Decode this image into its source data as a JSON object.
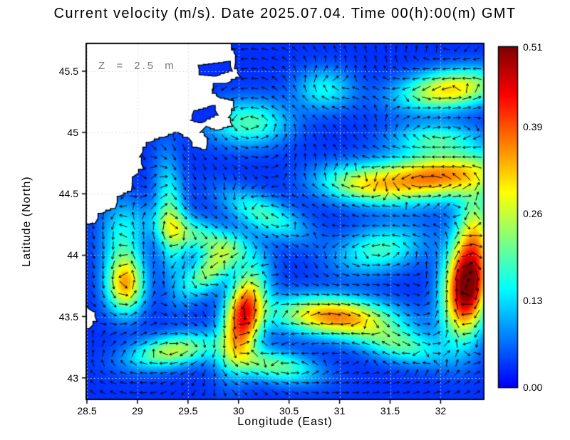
{
  "chart_data": {
    "type": "heatmap",
    "subtype": "ocean-current-vector-map",
    "title": "Current velocity (m/s). Date 2025.07.04. Time 00(h):00(m) GMT",
    "xlabel": "Longitude (East)",
    "ylabel": "Latitude (North)",
    "depth_annotation": "Z = 2.5 m",
    "xlim": [
      28.5,
      32.42
    ],
    "ylim": [
      42.83,
      45.72
    ],
    "xtick_values": [
      28.5,
      29,
      29.5,
      30,
      30.5,
      31,
      31.5,
      32
    ],
    "xtick_labels": [
      "28.5",
      "29",
      "29.5",
      "30",
      "30.5",
      "31",
      "31.5",
      "32"
    ],
    "ytick_values": [
      43,
      43.5,
      44,
      44.5,
      45,
      45.5
    ],
    "ytick_labels": [
      "43",
      "43.5",
      "44",
      "44.5",
      "45",
      "45.5"
    ],
    "grid": true,
    "colorbar": {
      "vmin": 0,
      "vmax": 0.51,
      "tick_values": [
        0.51,
        0.39,
        0.26,
        0.13,
        0
      ],
      "tick_labels": [
        "0.51",
        "0.39",
        "0.26",
        "0.13",
        "0.00"
      ],
      "colormap": "jet",
      "position": "right",
      "units": "m/s"
    },
    "field_representation": "gaussian_feature_approximation",
    "background_speed": 0.03,
    "speed_features": [
      {
        "lon": 31.95,
        "lat": 44.64,
        "sx": 0.5,
        "sy": 0.13,
        "rot": 4,
        "amp": 0.34,
        "sign": 1
      },
      {
        "lon": 31.2,
        "lat": 44.58,
        "sx": 0.3,
        "sy": 0.1,
        "rot": -5,
        "amp": 0.15,
        "sign": -1
      },
      {
        "lon": 32.26,
        "lat": 43.76,
        "sx": 0.15,
        "sy": 0.28,
        "rot": -8,
        "amp": 0.52,
        "sign": -1
      },
      {
        "lon": 30.05,
        "lat": 43.5,
        "sx": 0.13,
        "sy": 0.26,
        "rot": -15,
        "amp": 0.4,
        "sign": 1
      },
      {
        "lon": 30.95,
        "lat": 43.5,
        "sx": 0.4,
        "sy": 0.11,
        "rot": -3,
        "amp": 0.33,
        "sign": -1
      },
      {
        "lon": 28.88,
        "lat": 43.76,
        "sx": 0.13,
        "sy": 0.16,
        "rot": 0,
        "amp": 0.3,
        "sign": 1
      },
      {
        "lon": 29.35,
        "lat": 43.22,
        "sx": 0.3,
        "sy": 0.09,
        "rot": 8,
        "amp": 0.22,
        "sign": -1
      },
      {
        "lon": 32.1,
        "lat": 45.35,
        "sx": 0.35,
        "sy": 0.11,
        "rot": 6,
        "amp": 0.28,
        "sign": 1
      },
      {
        "lon": 29.62,
        "lat": 44.15,
        "sx": 0.33,
        "sy": 0.1,
        "rot": -15,
        "amp": 0.16,
        "sign": -1
      },
      {
        "lon": 30.25,
        "lat": 44.33,
        "sx": 0.3,
        "sy": 0.1,
        "rot": -20,
        "amp": 0.15,
        "sign": 1
      },
      {
        "lon": 31.4,
        "lat": 44.05,
        "sx": 0.3,
        "sy": 0.13,
        "rot": 10,
        "amp": 0.15,
        "sign": 1
      },
      {
        "lon": 29.33,
        "lat": 44.3,
        "sx": 0.1,
        "sy": 0.33,
        "rot": 5,
        "amp": 0.16,
        "sign": -1
      },
      {
        "lon": 30.1,
        "lat": 45.08,
        "sx": 0.28,
        "sy": 0.13,
        "rot": 0,
        "amp": 0.16,
        "sign": 1
      },
      {
        "lon": 31.95,
        "lat": 44.95,
        "sx": 0.3,
        "sy": 0.09,
        "rot": 0,
        "amp": 0.14,
        "sign": -1
      },
      {
        "lon": 29.72,
        "lat": 43.88,
        "sx": 0.22,
        "sy": 0.1,
        "rot": 35,
        "amp": 0.2,
        "sign": 1
      },
      {
        "lon": 30.85,
        "lat": 45.35,
        "sx": 0.2,
        "sy": 0.12,
        "rot": 0,
        "amp": 0.12,
        "sign": -1
      },
      {
        "lon": 30.35,
        "lat": 43.1,
        "sx": 0.3,
        "sy": 0.09,
        "rot": -8,
        "amp": 0.18,
        "sign": 1
      },
      {
        "lon": 31.6,
        "lat": 43.27,
        "sx": 0.3,
        "sy": 0.1,
        "rot": -10,
        "amp": 0.16,
        "sign": -1
      },
      {
        "lon": 32.35,
        "lat": 44.25,
        "sx": 0.12,
        "sy": 0.2,
        "rot": 0,
        "amp": 0.15,
        "sign": 1
      },
      {
        "lon": 28.85,
        "lat": 44.15,
        "sx": 0.15,
        "sy": 0.2,
        "rot": 0,
        "amp": 0.12,
        "sign": 1
      }
    ],
    "gyres": [
      {
        "lon": 30.9,
        "lat": 44.15,
        "sigma": 1.2,
        "amp": 1.0
      },
      {
        "lon": 31.8,
        "lat": 45.15,
        "sigma": 0.7,
        "amp": -0.55
      },
      {
        "lon": 29.5,
        "lat": 43.6,
        "sigma": 0.65,
        "amp": -0.5
      },
      {
        "lon": 30.0,
        "lat": 45.2,
        "sigma": 0.5,
        "amp": 0.45
      },
      {
        "lon": 32.2,
        "lat": 43.8,
        "sigma": 0.5,
        "amp": 0.5
      }
    ],
    "arrow_grid": {
      "dlon": 0.1,
      "dlat": 0.08,
      "lon_offset": 0.06,
      "lat_offset": 0.05
    },
    "coastline": {
      "land_polygons": [
        [
          [
            28.45,
            45.76
          ],
          [
            29.93,
            45.76
          ],
          [
            29.93,
            45.68
          ],
          [
            29.98,
            45.62
          ],
          [
            29.96,
            45.52
          ],
          [
            30.02,
            45.45
          ],
          [
            29.88,
            45.4
          ],
          [
            29.76,
            45.4
          ],
          [
            29.74,
            45.32
          ],
          [
            29.82,
            45.28
          ],
          [
            29.94,
            45.26
          ],
          [
            29.96,
            45.18
          ],
          [
            29.9,
            45.12
          ],
          [
            29.94,
            45.05
          ],
          [
            29.8,
            45.02
          ],
          [
            29.68,
            45.05
          ],
          [
            29.62,
            45.0
          ],
          [
            29.7,
            44.95
          ],
          [
            29.68,
            44.86
          ],
          [
            29.58,
            44.88
          ],
          [
            29.5,
            44.96
          ],
          [
            29.4,
            45.0
          ],
          [
            29.26,
            44.96
          ],
          [
            29.12,
            44.92
          ],
          [
            29.02,
            44.8
          ],
          [
            29.06,
            44.7
          ],
          [
            28.96,
            44.64
          ],
          [
            28.94,
            44.52
          ],
          [
            28.82,
            44.48
          ],
          [
            28.78,
            44.38
          ],
          [
            28.64,
            44.34
          ],
          [
            28.58,
            44.26
          ],
          [
            28.45,
            44.24
          ]
        ],
        [
          [
            28.45,
            43.6
          ],
          [
            28.56,
            43.54
          ],
          [
            28.6,
            43.46
          ],
          [
            28.52,
            43.4
          ],
          [
            28.45,
            43.36
          ]
        ]
      ],
      "lakes": [
        [
          [
            29.6,
            45.55
          ],
          [
            29.9,
            45.58
          ],
          [
            29.94,
            45.5
          ],
          [
            29.78,
            45.46
          ],
          [
            29.62,
            45.47
          ]
        ],
        [
          [
            29.56,
            45.18
          ],
          [
            29.74,
            45.22
          ],
          [
            29.8,
            45.14
          ],
          [
            29.64,
            45.08
          ],
          [
            29.52,
            45.1
          ]
        ]
      ]
    }
  },
  "colors": {
    "land": "#ffffff",
    "coastline": "#000000",
    "arrows": "#000000",
    "grid": "#d4d4d4",
    "annotation": "#787878",
    "axis": "#000000",
    "background": "#ffffff"
  }
}
